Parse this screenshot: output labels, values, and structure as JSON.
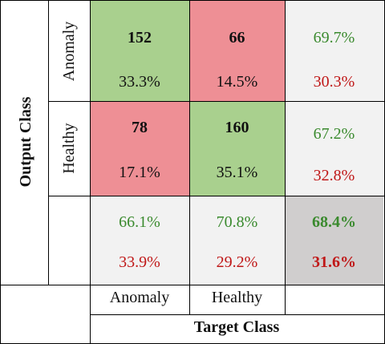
{
  "chart_data": {
    "type": "table",
    "title": "",
    "ylabel": "Output Class",
    "xlabel": "Target Class",
    "row_labels": [
      "Anomaly",
      "Healthy"
    ],
    "col_labels": [
      "Anomaly",
      "Healthy"
    ],
    "counts": [
      [
        152,
        66
      ],
      [
        78,
        160
      ]
    ],
    "percent_of_total": [
      [
        "33.3%",
        "14.5%"
      ],
      [
        "17.1%",
        "35.1%"
      ]
    ],
    "row_summary": [
      {
        "correct": "69.7%",
        "error": "30.3%"
      },
      {
        "correct": "67.2%",
        "error": "32.8%"
      }
    ],
    "col_summary": [
      {
        "correct": "66.1%",
        "error": "33.9%"
      },
      {
        "correct": "70.8%",
        "error": "29.2%"
      }
    ],
    "overall": {
      "correct": "68.4%",
      "error": "31.6%"
    }
  },
  "labels": {
    "output_class": "Output Class",
    "target_class": "Target Class",
    "row_anomaly": "Anomaly",
    "row_healthy": "Healthy",
    "col_anomaly": "Anomaly",
    "col_healthy": "Healthy"
  },
  "cells": {
    "r0c0": {
      "count": "152",
      "pct": "33.3%"
    },
    "r0c1": {
      "count": "66",
      "pct": "14.5%"
    },
    "r1c0": {
      "count": "78",
      "pct": "17.1%"
    },
    "r1c1": {
      "count": "160",
      "pct": "35.1%"
    },
    "r0s": {
      "correct": "69.7%",
      "error": "30.3%"
    },
    "r1s": {
      "correct": "67.2%",
      "error": "32.8%"
    },
    "c0s": {
      "correct": "66.1%",
      "error": "33.9%"
    },
    "c1s": {
      "correct": "70.8%",
      "error": "29.2%"
    },
    "tot": {
      "correct": "68.4%",
      "error": "31.6%"
    }
  },
  "colors": {
    "correct_cell": "#a9d08e",
    "error_cell": "#ee8f95",
    "summary_cell": "#f2f2f2",
    "overall_cell": "#d0cece",
    "correct_text": "#3a8a2e",
    "error_text": "#c01818"
  }
}
